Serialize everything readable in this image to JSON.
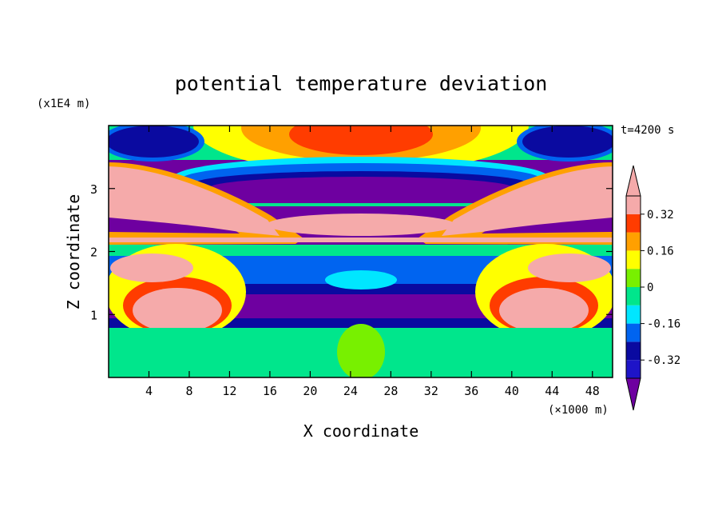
{
  "chart_data": {
    "type": "heatmap",
    "title": "potential temperature deviation",
    "xlabel": "X coordinate",
    "ylabel": "Z coordinate",
    "x_unit": "(×1000 m)",
    "y_unit": "(x1E4 m)",
    "time_label": "t=4200 s",
    "xlim": [
      0,
      50
    ],
    "ylim": [
      0,
      4
    ],
    "x_ticks": [
      4,
      8,
      12,
      16,
      20,
      24,
      28,
      32,
      36,
      40,
      44,
      48
    ],
    "y_ticks": [
      1,
      2,
      3
    ],
    "colorbar": {
      "levels": [
        -0.4,
        -0.32,
        -0.24,
        -0.16,
        -0.08,
        0,
        0.08,
        0.16,
        0.24,
        0.32,
        0.4
      ],
      "labels": [
        "0.32",
        "0.16",
        "0",
        "-0.16",
        "-0.32"
      ],
      "label_values": [
        0.32,
        0.16,
        0,
        -0.16,
        -0.32
      ],
      "colors": [
        "#6e00a0",
        "#1e14c8",
        "#0a0aa0",
        "#0064f0",
        "#00e6ff",
        "#00e68c",
        "#78f000",
        "#ffff00",
        "#ffa000",
        "#ff3c00",
        "#f5aaaa"
      ],
      "extend": "both"
    },
    "contour_colors": {
      "purple": "#6e00a0",
      "darkblue": "#0a0aa0",
      "medblue": "#1e14c8",
      "blue": "#0064f0",
      "cyan": "#00e6ff",
      "sea": "#00e68c",
      "lime": "#78f000",
      "yellow": "#ffff00",
      "orange": "#ffa000",
      "red": "#ff3c00",
      "pink": "#f5aaaa"
    }
  }
}
